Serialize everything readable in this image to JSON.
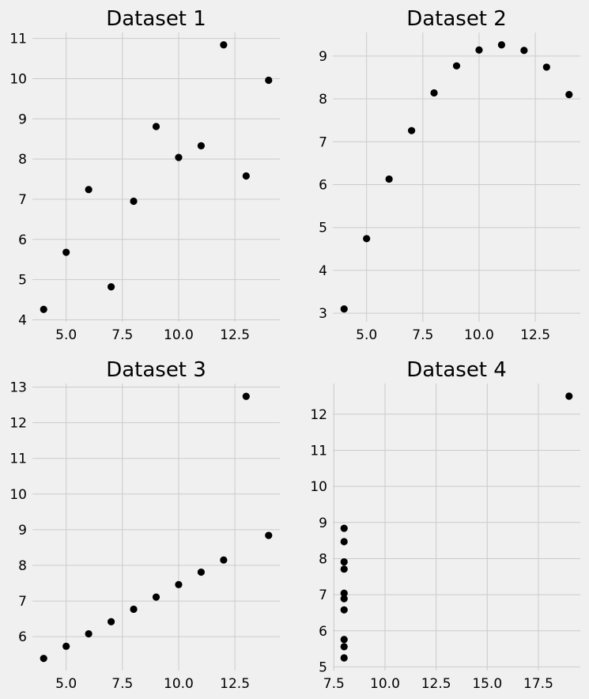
{
  "chart_data": [
    {
      "type": "scatter",
      "title": "Dataset 1",
      "xlabel": "",
      "ylabel": "",
      "xlim": [
        3.5,
        14.5
      ],
      "ylim": [
        3.95,
        11.15
      ],
      "xticks": [
        5.0,
        7.5,
        10.0,
        12.5
      ],
      "xtick_labels": [
        "5.0",
        "7.5",
        "10.0",
        "12.5"
      ],
      "yticks": [
        4,
        5,
        6,
        7,
        8,
        9,
        10,
        11
      ],
      "ytick_labels": [
        "4",
        "5",
        "6",
        "7",
        "8",
        "9",
        "10",
        "11"
      ],
      "grid": true,
      "marker_color": "#000000",
      "series": [
        {
          "x": [
            10,
            8,
            13,
            9,
            11,
            14,
            6,
            4,
            12,
            7,
            5
          ],
          "y": [
            8.04,
            6.95,
            7.58,
            8.81,
            8.33,
            9.96,
            7.24,
            4.26,
            10.84,
            4.82,
            5.68
          ]
        }
      ]
    },
    {
      "type": "scatter",
      "title": "Dataset 2",
      "xlabel": "",
      "ylabel": "",
      "xlim": [
        3.5,
        14.5
      ],
      "ylim": [
        2.8,
        9.55
      ],
      "xticks": [
        5.0,
        7.5,
        10.0,
        12.5
      ],
      "xtick_labels": [
        "5.0",
        "7.5",
        "10.0",
        "12.5"
      ],
      "yticks": [
        3,
        4,
        5,
        6,
        7,
        8,
        9
      ],
      "ytick_labels": [
        "3",
        "4",
        "5",
        "6",
        "7",
        "8",
        "9"
      ],
      "grid": true,
      "marker_color": "#000000",
      "series": [
        {
          "x": [
            10,
            8,
            13,
            9,
            11,
            14,
            6,
            4,
            12,
            7,
            5
          ],
          "y": [
            9.14,
            8.14,
            8.74,
            8.77,
            9.26,
            8.1,
            6.13,
            3.1,
            9.13,
            7.26,
            4.74
          ]
        }
      ]
    },
    {
      "type": "scatter",
      "title": "Dataset 3",
      "xlabel": "",
      "ylabel": "",
      "xlim": [
        3.5,
        14.5
      ],
      "ylim": [
        5.05,
        13.1
      ],
      "xticks": [
        5.0,
        7.5,
        10.0,
        12.5
      ],
      "xtick_labels": [
        "5.0",
        "7.5",
        "10.0",
        "12.5"
      ],
      "yticks": [
        6,
        7,
        8,
        9,
        10,
        11,
        12,
        13
      ],
      "ytick_labels": [
        "6",
        "7",
        "8",
        "9",
        "10",
        "11",
        "12",
        "13"
      ],
      "grid": true,
      "marker_color": "#000000",
      "series": [
        {
          "x": [
            10,
            8,
            13,
            9,
            11,
            14,
            6,
            4,
            12,
            7,
            5
          ],
          "y": [
            7.46,
            6.77,
            12.74,
            7.11,
            7.81,
            8.84,
            6.08,
            5.39,
            8.15,
            6.42,
            5.73
          ]
        }
      ]
    },
    {
      "type": "scatter",
      "title": "Dataset 4",
      "xlabel": "",
      "ylabel": "",
      "xlim": [
        7.45,
        19.55
      ],
      "ylim": [
        4.9,
        12.85
      ],
      "xticks": [
        7.5,
        10.0,
        12.5,
        15.0,
        17.5
      ],
      "xtick_labels": [
        "7.5",
        "10.0",
        "12.5",
        "15.0",
        "17.5"
      ],
      "yticks": [
        5,
        6,
        7,
        8,
        9,
        10,
        11,
        12
      ],
      "ytick_labels": [
        "5",
        "6",
        "7",
        "8",
        "9",
        "10",
        "11",
        "12"
      ],
      "grid": true,
      "marker_color": "#000000",
      "series": [
        {
          "x": [
            8,
            8,
            8,
            8,
            8,
            8,
            8,
            19,
            8,
            8,
            8
          ],
          "y": [
            6.58,
            5.76,
            7.71,
            8.84,
            8.47,
            7.04,
            5.25,
            12.5,
            5.56,
            7.91,
            6.89
          ]
        }
      ]
    }
  ]
}
